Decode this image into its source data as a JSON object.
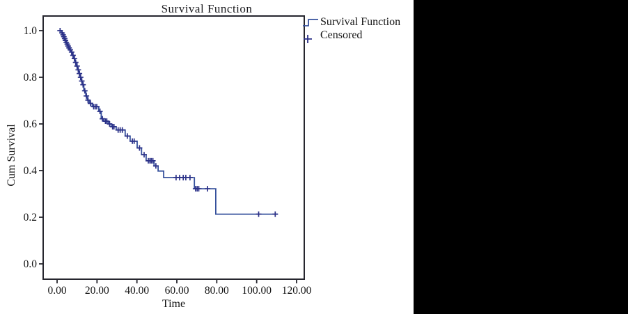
{
  "panel": {
    "background": "#ffffff",
    "letterbox_color": "#000000"
  },
  "chart_data": {
    "type": "line",
    "subtype": "kaplan-meier-step",
    "title": "Survival Function",
    "xlabel": "Time",
    "ylabel": "Cum Survival",
    "x_ticks": [
      "0.00",
      "20.00",
      "40.00",
      "60.00",
      "80.00",
      "100.00",
      "120.00"
    ],
    "x_tick_values": [
      0,
      20,
      40,
      60,
      80,
      100,
      120
    ],
    "y_ticks": [
      "1.0",
      "0.8",
      "0.6",
      "0.4",
      "0.2",
      "0.0"
    ],
    "y_tick_values": [
      1.0,
      0.8,
      0.6,
      0.4,
      0.2,
      0.0
    ],
    "xlim": [
      0,
      120
    ],
    "ylim": [
      0.0,
      1.0
    ],
    "grid": false,
    "legend_position": "outside-top-right",
    "line_color": "#35509c",
    "marker_color": "#2b3188",
    "axis_color": "#26262e",
    "start": [
      1.5,
      1.0
    ],
    "end_time": 110.6,
    "steps": [
      [
        2.3,
        0.99
      ],
      [
        2.8,
        0.982
      ],
      [
        3.2,
        0.974
      ],
      [
        3.6,
        0.966
      ],
      [
        4.0,
        0.958
      ],
      [
        4.4,
        0.95
      ],
      [
        4.9,
        0.942
      ],
      [
        5.3,
        0.934
      ],
      [
        5.8,
        0.926
      ],
      [
        6.3,
        0.918
      ],
      [
        7.0,
        0.908
      ],
      [
        7.8,
        0.894
      ],
      [
        8.4,
        0.88
      ],
      [
        9.0,
        0.864
      ],
      [
        9.6,
        0.848
      ],
      [
        10.3,
        0.832
      ],
      [
        10.9,
        0.816
      ],
      [
        11.5,
        0.8
      ],
      [
        12.1,
        0.784
      ],
      [
        12.7,
        0.768
      ],
      [
        13.4,
        0.742
      ],
      [
        14.4,
        0.72
      ],
      [
        15.1,
        0.702
      ],
      [
        16.1,
        0.688
      ],
      [
        17.6,
        0.674
      ],
      [
        20.9,
        0.654
      ],
      [
        22.1,
        0.622
      ],
      [
        23.3,
        0.612
      ],
      [
        25.6,
        0.6
      ],
      [
        27.1,
        0.588
      ],
      [
        29.6,
        0.574
      ],
      [
        34.1,
        0.548
      ],
      [
        36.6,
        0.526
      ],
      [
        40.1,
        0.497
      ],
      [
        42.3,
        0.468
      ],
      [
        44.6,
        0.442
      ],
      [
        48.6,
        0.42
      ],
      [
        50.6,
        0.398
      ],
      [
        53.4,
        0.37
      ],
      [
        68.8,
        0.322
      ],
      [
        79.5,
        0.213
      ]
    ],
    "censored": [
      [
        1.5,
        1.0
      ],
      [
        2.5,
        0.99
      ],
      [
        3.0,
        0.982
      ],
      [
        3.4,
        0.974
      ],
      [
        3.8,
        0.966
      ],
      [
        4.2,
        0.958
      ],
      [
        4.6,
        0.95
      ],
      [
        5.1,
        0.942
      ],
      [
        5.5,
        0.934
      ],
      [
        6.0,
        0.926
      ],
      [
        6.6,
        0.918
      ],
      [
        7.3,
        0.908
      ],
      [
        8.0,
        0.894
      ],
      [
        8.7,
        0.88
      ],
      [
        9.3,
        0.864
      ],
      [
        10.0,
        0.848
      ],
      [
        10.6,
        0.832
      ],
      [
        11.2,
        0.816
      ],
      [
        11.8,
        0.8
      ],
      [
        12.4,
        0.784
      ],
      [
        13.0,
        0.768
      ],
      [
        13.9,
        0.742
      ],
      [
        14.7,
        0.72
      ],
      [
        15.5,
        0.702
      ],
      [
        16.7,
        0.688
      ],
      [
        18.3,
        0.674
      ],
      [
        19.1,
        0.674
      ],
      [
        19.9,
        0.674
      ],
      [
        21.5,
        0.654
      ],
      [
        22.7,
        0.622
      ],
      [
        24.2,
        0.612
      ],
      [
        24.9,
        0.612
      ],
      [
        26.3,
        0.6
      ],
      [
        27.8,
        0.588
      ],
      [
        28.5,
        0.588
      ],
      [
        30.6,
        0.574
      ],
      [
        31.6,
        0.574
      ],
      [
        32.7,
        0.574
      ],
      [
        35.2,
        0.548
      ],
      [
        37.7,
        0.526
      ],
      [
        38.6,
        0.526
      ],
      [
        41.3,
        0.497
      ],
      [
        43.6,
        0.468
      ],
      [
        45.7,
        0.442
      ],
      [
        46.5,
        0.442
      ],
      [
        47.2,
        0.442
      ],
      [
        48.0,
        0.442
      ],
      [
        49.5,
        0.42
      ],
      [
        59.6,
        0.37
      ],
      [
        61.4,
        0.37
      ],
      [
        63.2,
        0.37
      ],
      [
        64.5,
        0.37
      ],
      [
        66.6,
        0.37
      ],
      [
        69.4,
        0.322
      ],
      [
        70.2,
        0.322
      ],
      [
        71.0,
        0.322
      ],
      [
        75.4,
        0.322
      ],
      [
        101.0,
        0.213
      ],
      [
        109.3,
        0.213
      ]
    ]
  },
  "legend": {
    "items": [
      {
        "label": "Survival Function",
        "marker": "step-line"
      },
      {
        "label": "Censored",
        "marker": "plus"
      }
    ]
  }
}
